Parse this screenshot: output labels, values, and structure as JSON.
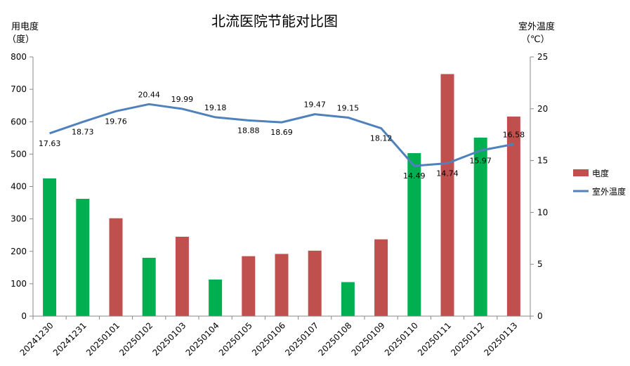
{
  "chart_data": {
    "type": "bar",
    "title": "北流医院节能对比图",
    "y_left_label_line1": "用电度",
    "y_left_label_line2": "（度）",
    "y_right_label_line1": "室外温度",
    "y_right_label_line2": "（℃）",
    "categories": [
      "20241230",
      "20241231",
      "20250101",
      "20250102",
      "20250103",
      "20250104",
      "20250105",
      "20250106",
      "20250107",
      "20250108",
      "20250109",
      "20250110",
      "20250111",
      "20250112",
      "20250113"
    ],
    "bar_series": {
      "name": "电度",
      "values": [
        425,
        362,
        302,
        180,
        245,
        113,
        185,
        192,
        202,
        105,
        237,
        503,
        747,
        551,
        616
      ],
      "colors": [
        "#00b050",
        "#00b050",
        "#c0504d",
        "#00b050",
        "#c0504d",
        "#00b050",
        "#c0504d",
        "#c0504d",
        "#c0504d",
        "#00b050",
        "#c0504d",
        "#00b050",
        "#c0504d",
        "#00b050",
        "#c0504d"
      ]
    },
    "line_series": {
      "name": "室外温度",
      "values": [
        17.63,
        18.73,
        19.76,
        20.44,
        19.99,
        19.18,
        18.88,
        18.69,
        19.47,
        19.15,
        18.12,
        14.49,
        14.74,
        15.97,
        16.58
      ],
      "labels": [
        "17.63",
        "18.73",
        "19.76",
        "20.44",
        "19.99",
        "19.18",
        "18.88",
        "18.69",
        "19.47",
        "19.15",
        "18.12",
        "14.49",
        "14.74",
        "15.97",
        "16.58"
      ],
      "color": "#4f81bd"
    },
    "y_left": {
      "min": 0,
      "max": 800,
      "step": 100
    },
    "y_right": {
      "min": 0,
      "max": 25,
      "step": 5
    },
    "grid": false,
    "legend_position": "right",
    "legend_bar_color": "#c0504d"
  }
}
